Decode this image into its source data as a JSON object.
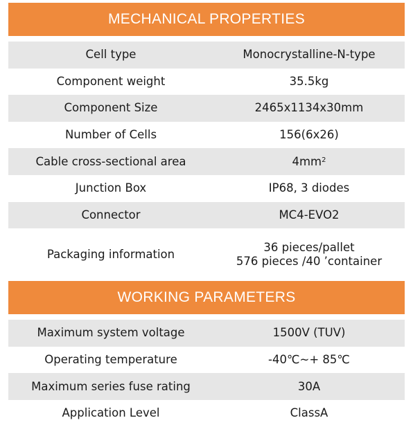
{
  "mechanical": {
    "title": "MECHANICAL PROPERTIES",
    "rows": [
      {
        "label": "Cell type",
        "value": "Monocrystalline-N-type"
      },
      {
        "label": "Component weight",
        "value": "35.5kg"
      },
      {
        "label": "Component Size",
        "value": "2465x1134x30mm"
      },
      {
        "label": "Number of Cells",
        "value": "156(6x26)"
      },
      {
        "label": "Cable cross-sectional area",
        "value": "4mm",
        "value_sup": "2"
      },
      {
        "label": "Junction Box",
        "value": "IP68, 3 diodes"
      },
      {
        "label": "Connector",
        "value": "MC4-EVO2"
      },
      {
        "label": "Packaging information",
        "value": "36 pieces/pallet",
        "value_line2": "576 pieces /40 ’container"
      }
    ]
  },
  "working": {
    "title": "WORKING PARAMETERS",
    "rows": [
      {
        "label": "Maximum system voltage",
        "value": "1500V (TUV)"
      },
      {
        "label": "Operating temperature",
        "value": "-40℃~+ 85℃"
      },
      {
        "label": "Maximum series fuse rating",
        "value": "30A"
      },
      {
        "label": "Application Level",
        "value": "ClassA"
      }
    ]
  },
  "colors": {
    "header_bg": "#ef8a3c",
    "shaded_row": "#e6e6e6"
  }
}
